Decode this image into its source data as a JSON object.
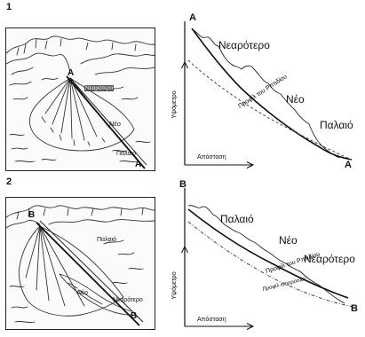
{
  "figure": {
    "panel1": {
      "number": "1",
      "sketch": {
        "apex_label": "Α",
        "zone_newest": "Νεαρότερο",
        "zone_new": "Νέο",
        "zone_old": "Παλαιό",
        "end_label": "Α"
      },
      "profile": {
        "start_label": "Α",
        "end_label": "Α",
        "zone_newest": "Νεαρότερο",
        "zone_new": "Νέο",
        "zone_old": "Παλαιό",
        "river_profile_label": "Προφίλ του Ρπτιδίου",
        "y_axis_label": "Υψόμετρο",
        "x_axis_label": "Απόσταση"
      }
    },
    "panel2": {
      "number": "2",
      "sketch": {
        "apex_label": "Β",
        "zone_old": "Παλαιό",
        "zone_new": "Νέο",
        "zone_newest": "Νεαρότερο",
        "end_label": "Β"
      },
      "profile": {
        "start_label": "Β",
        "end_label": "Β",
        "zone_old": "Παλαιό",
        "zone_new": "Νέο",
        "zone_newest": "Νεαρότερο",
        "river_profile_label": "Προφίλ του Ρπτιδίου",
        "equilibrium_profile_label": "Προφίλ ισορροπίας",
        "y_axis_label": "Υψόμετρο",
        "x_axis_label": "Απόσταση"
      }
    },
    "colors": {
      "ink": "#1a1a1a",
      "paper": "#ffffff",
      "sketch_bg": "#fbfbfb"
    }
  }
}
